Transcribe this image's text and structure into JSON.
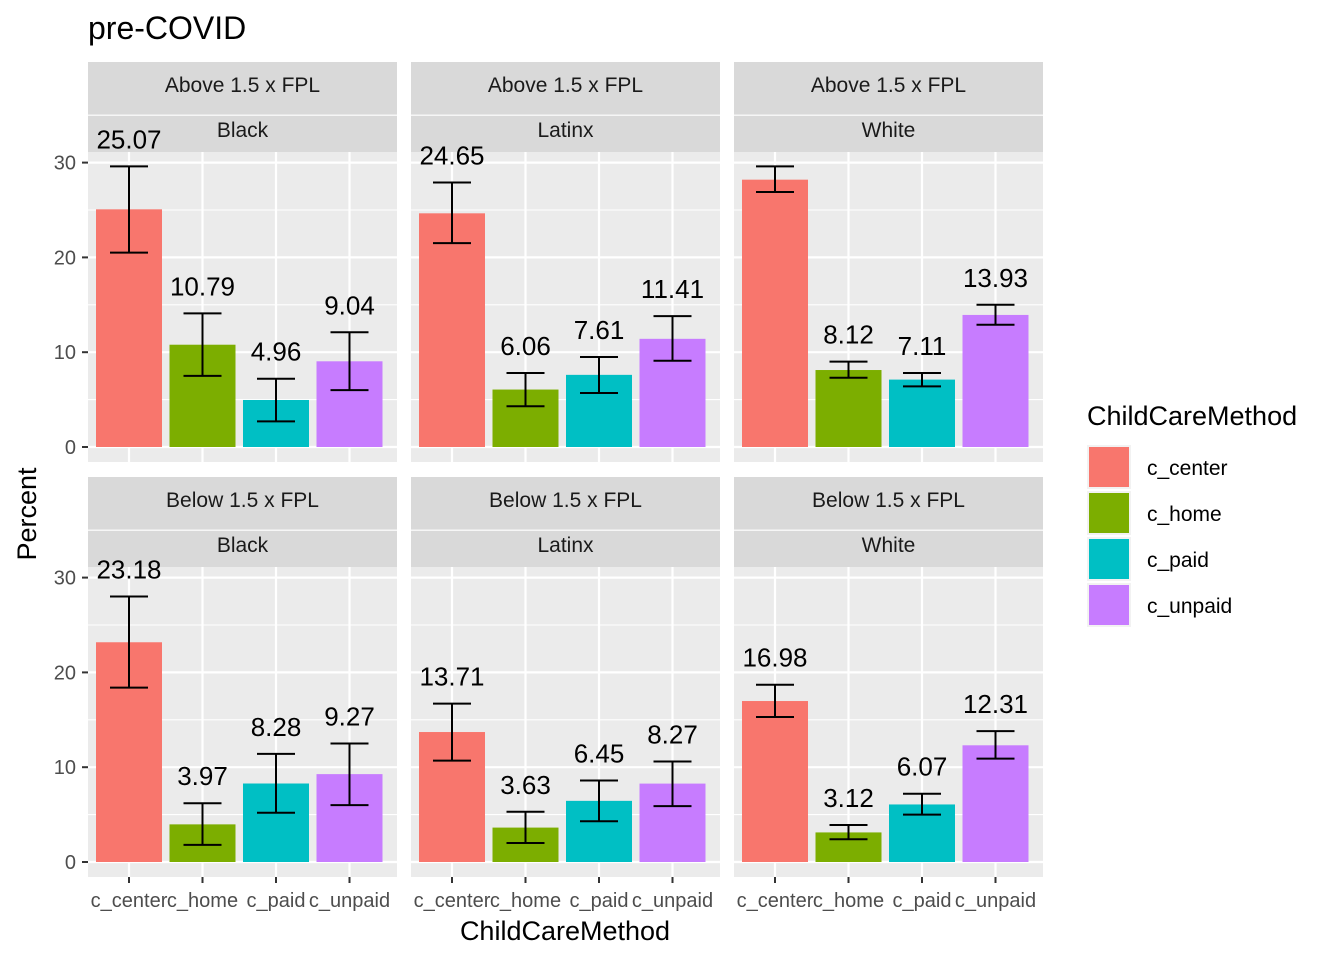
{
  "title": "pre-COVID",
  "chart_data": {
    "type": "bar",
    "title": "pre-COVID",
    "xlabel": "ChildCareMethod",
    "ylabel": "Percent",
    "categories": [
      "c_center",
      "c_home",
      "c_paid",
      "c_unpaid"
    ],
    "ylim": [
      0,
      38
    ],
    "yticks": [
      0,
      10,
      20,
      30
    ],
    "colors": {
      "c_center": "#f8766d",
      "c_home": "#7cae00",
      "c_paid": "#00bfc4",
      "c_unpaid": "#c77cff"
    },
    "legend": {
      "title": "ChildCareMethod",
      "items": [
        "c_center",
        "c_home",
        "c_paid",
        "c_unpaid"
      ],
      "position": "right"
    },
    "panels": [
      {
        "strip1": "Above 1.5 x FPL",
        "strip2": "Black",
        "values": [
          25.07,
          10.79,
          4.96,
          9.04
        ],
        "labels": [
          "25.07",
          "10.79",
          "4.96",
          "9.04"
        ],
        "err_low": [
          20.5,
          7.5,
          2.7,
          6.0
        ],
        "err_high": [
          29.6,
          14.1,
          7.2,
          12.1
        ]
      },
      {
        "strip1": "Above 1.5 x FPL",
        "strip2": "Latinx",
        "values": [
          24.65,
          6.06,
          7.61,
          11.41
        ],
        "labels": [
          "24.65",
          "6.06",
          "7.61",
          "11.41"
        ],
        "err_low": [
          21.5,
          4.3,
          5.7,
          9.1
        ],
        "err_high": [
          27.9,
          7.8,
          9.5,
          13.8
        ]
      },
      {
        "strip1": "Above 1.5 x FPL",
        "strip2": "White",
        "values": [
          28.2,
          8.12,
          7.11,
          13.93
        ],
        "labels": [
          "",
          "8.12",
          "7.11",
          "13.93"
        ],
        "err_low": [
          26.9,
          7.3,
          6.4,
          12.9
        ],
        "err_high": [
          29.6,
          9.0,
          7.8,
          15.0
        ]
      },
      {
        "strip1": "Below 1.5 x FPL",
        "strip2": "Black",
        "values": [
          23.18,
          3.97,
          8.28,
          9.27
        ],
        "labels": [
          "23.18",
          "3.97",
          "8.28",
          "9.27"
        ],
        "err_low": [
          18.4,
          1.8,
          5.2,
          6.0
        ],
        "err_high": [
          28.0,
          6.2,
          11.4,
          12.5
        ]
      },
      {
        "strip1": "Below 1.5 x FPL",
        "strip2": "Latinx",
        "values": [
          13.71,
          3.63,
          6.45,
          8.27
        ],
        "labels": [
          "13.71",
          "3.63",
          "6.45",
          "8.27"
        ],
        "err_low": [
          10.7,
          2.0,
          4.3,
          5.9
        ],
        "err_high": [
          16.7,
          5.3,
          8.6,
          10.6
        ]
      },
      {
        "strip1": "Below 1.5 x FPL",
        "strip2": "White",
        "values": [
          16.98,
          3.12,
          6.07,
          12.31
        ],
        "labels": [
          "16.98",
          "3.12",
          "6.07",
          "12.31"
        ],
        "err_low": [
          15.3,
          2.4,
          5.0,
          10.9
        ],
        "err_high": [
          18.7,
          3.9,
          7.2,
          13.8
        ]
      }
    ]
  }
}
